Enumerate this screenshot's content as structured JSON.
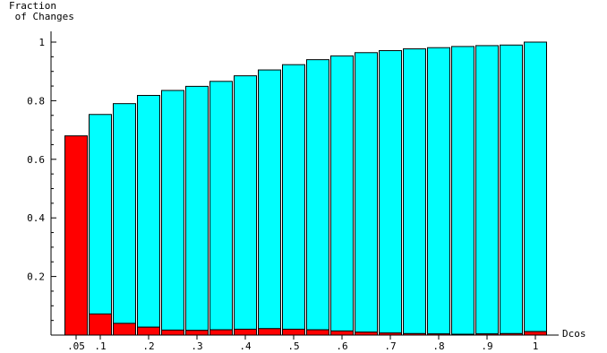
{
  "chart_data": {
    "type": "bar",
    "stacked": true,
    "title": "",
    "ylabel": [
      "Fraction",
      " of Changes"
    ],
    "xlabel": "Dcos",
    "ylim": [
      0,
      1
    ],
    "yticks": [
      {
        "value": 0.2,
        "label": "0.2"
      },
      {
        "value": 0.4,
        "label": "0.4"
      },
      {
        "value": 0.6,
        "label": "0.6"
      },
      {
        "value": 0.8,
        "label": "0.8"
      },
      {
        "value": 1.0,
        "label": "1"
      }
    ],
    "xticks": [
      {
        "value": 0.05,
        "label": ".05"
      },
      {
        "value": 0.1,
        "label": ".1"
      },
      {
        "value": 0.2,
        "label": ".2"
      },
      {
        "value": 0.3,
        "label": ".3"
      },
      {
        "value": 0.4,
        "label": ".4"
      },
      {
        "value": 0.5,
        "label": ".5"
      },
      {
        "value": 0.6,
        "label": ".6"
      },
      {
        "value": 0.7,
        "label": ".7"
      },
      {
        "value": 0.8,
        "label": ".8"
      },
      {
        "value": 0.9,
        "label": ".9"
      },
      {
        "value": 1.0,
        "label": "1"
      }
    ],
    "grid": false,
    "legend": "none",
    "x": [
      0.05,
      0.1,
      0.15,
      0.2,
      0.25,
      0.3,
      0.35,
      0.4,
      0.45,
      0.5,
      0.55,
      0.6,
      0.65,
      0.7,
      0.75,
      0.8,
      0.85,
      0.9,
      0.95,
      1.0
    ],
    "series": [
      {
        "color": "#ff0000",
        "values": [
          0.68,
          0.072,
          0.04,
          0.027,
          0.017,
          0.016,
          0.018,
          0.02,
          0.022,
          0.02,
          0.018,
          0.014,
          0.01,
          0.007,
          0.005,
          0.004,
          0.003,
          0.004,
          0.005,
          0.012
        ]
      },
      {
        "color": "#00ffff",
        "totals": [
          0.68,
          0.753,
          0.79,
          0.818,
          0.835,
          0.849,
          0.866,
          0.885,
          0.905,
          0.923,
          0.94,
          0.953,
          0.964,
          0.971,
          0.977,
          0.981,
          0.985,
          0.988,
          0.99,
          1.0
        ]
      }
    ]
  }
}
